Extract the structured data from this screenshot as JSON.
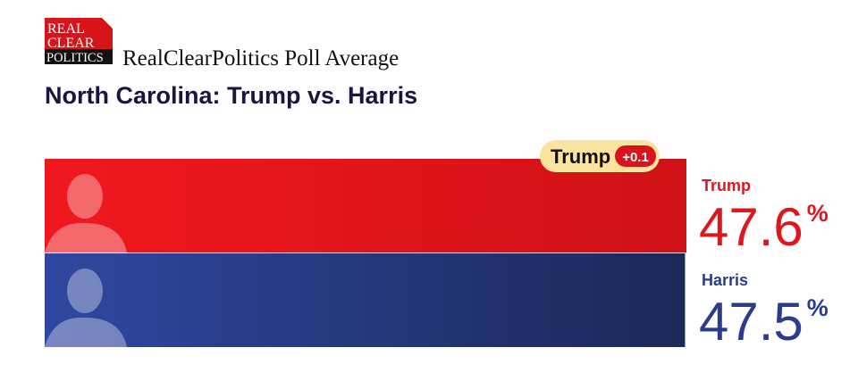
{
  "logo": [
    "REAL",
    "CLEAR",
    "POLITICS"
  ],
  "chart_data": {
    "type": "bar",
    "orientation": "horizontal",
    "subtitle": "RealClearPolitics Poll Average",
    "title": "North Carolina: Trump vs. Harris",
    "unit": "%",
    "series": [
      {
        "name": "Trump",
        "color": "#e0161c",
        "values": [
          47.6
        ]
      },
      {
        "name": "Harris",
        "color": "#2a3c8c",
        "values": [
          47.5
        ]
      }
    ],
    "lead": {
      "name": "Trump",
      "value": 0.1,
      "label": "+0.1"
    }
  }
}
